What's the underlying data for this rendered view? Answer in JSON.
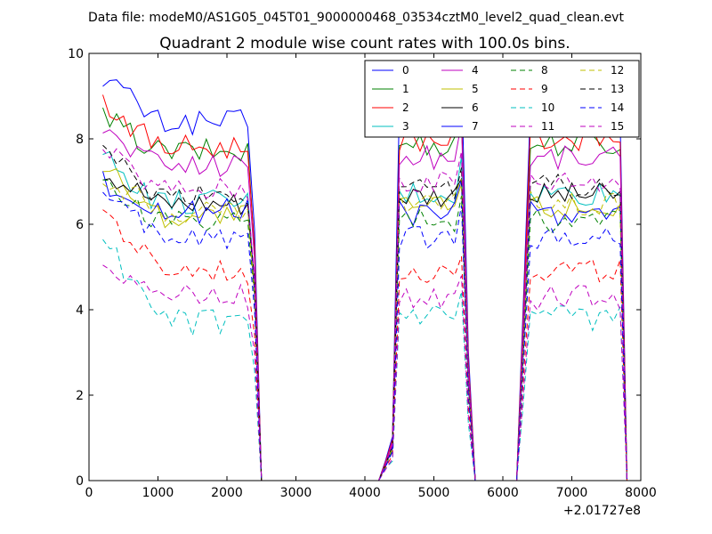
{
  "chart_data": {
    "type": "line",
    "suptitle": "Data file: modeM0/AS1G05_045T01_9000000468_03534cztM0_level2_quad_clean.evt",
    "title": "Quadrant 2 module wise count rates with 100.0s bins.",
    "xlabel": "",
    "ylabel": "",
    "x_offset_label": "+2.01727e8",
    "xlim": [
      0,
      8000
    ],
    "ylim": [
      0,
      10
    ],
    "xticks": [
      0,
      1000,
      2000,
      3000,
      4000,
      5000,
      6000,
      7000,
      8000
    ],
    "xtick_labels": [
      "0",
      "1000",
      "2000",
      "3000",
      "4000",
      "5000",
      "6000",
      "7000",
      "8000"
    ],
    "yticks": [
      0,
      2,
      4,
      6,
      8,
      10
    ],
    "ytick_labels": [
      "0",
      "2",
      "4",
      "6",
      "8",
      "10"
    ],
    "legend_position": "upper-right",
    "legend_columns": 4,
    "x": [
      200,
      300,
      400,
      500,
      600,
      700,
      800,
      900,
      1000,
      1100,
      1200,
      1300,
      1400,
      1500,
      1600,
      1700,
      1800,
      1900,
      2000,
      2100,
      2200,
      2300,
      2400,
      2500,
      2600,
      2700,
      2800,
      2900,
      3000,
      3100,
      3200,
      3300,
      3400,
      3500,
      3600,
      3700,
      3800,
      3900,
      4000,
      4100,
      4200,
      4300,
      4400,
      4500,
      4600,
      4700,
      4800,
      4900,
      5000,
      5100,
      5200,
      5300,
      5400,
      5500,
      5600,
      5700,
      5800,
      5900,
      6000,
      6100,
      6200,
      6300,
      6400,
      6500,
      6600,
      6700,
      6800,
      6900,
      7000,
      7100,
      7200,
      7300,
      7400,
      7500,
      7600,
      7700,
      7800
    ],
    "series": [
      {
        "name": "0",
        "color": "#0000ff",
        "dash": "solid",
        "base": 9.5,
        "decay": 1.1
      },
      {
        "name": "1",
        "color": "#008000",
        "dash": "solid",
        "base": 8.5,
        "decay": 0.8
      },
      {
        "name": "2",
        "color": "#ff0000",
        "dash": "solid",
        "base": 8.9,
        "decay": 1.1
      },
      {
        "name": "3",
        "color": "#00bfbf",
        "dash": "solid",
        "base": 7.6,
        "decay": 1.1
      },
      {
        "name": "4",
        "color": "#bf00bf",
        "dash": "solid",
        "base": 8.2,
        "decay": 0.8
      },
      {
        "name": "5",
        "color": "#bfbf00",
        "dash": "solid",
        "base": 7.4,
        "decay": 1.2
      },
      {
        "name": "6",
        "color": "#000000",
        "dash": "solid",
        "base": 7.3,
        "decay": 0.8
      },
      {
        "name": "7",
        "color": "#0000ff",
        "dash": "solid",
        "base": 7.0,
        "decay": 0.7
      },
      {
        "name": "8",
        "color": "#008000",
        "dash": "dashed",
        "base": 6.9,
        "decay": 0.8
      },
      {
        "name": "9",
        "color": "#ff0000",
        "dash": "dashed",
        "base": 6.3,
        "decay": 1.4
      },
      {
        "name": "10",
        "color": "#00bfbf",
        "dash": "dashed",
        "base": 5.7,
        "decay": 2.0
      },
      {
        "name": "11",
        "color": "#bf00bf",
        "dash": "dashed",
        "base": 5.2,
        "decay": 0.9
      },
      {
        "name": "12",
        "color": "#bfbf00",
        "dash": "dashed",
        "base": 7.2,
        "decay": 0.9
      },
      {
        "name": "13",
        "color": "#000000",
        "dash": "dashed",
        "base": 7.6,
        "decay": 0.9
      },
      {
        "name": "14",
        "color": "#0000ff",
        "dash": "dashed",
        "base": 6.6,
        "decay": 0.9
      },
      {
        "name": "15",
        "color": "#bf00bf",
        "dash": "dashed",
        "base": 7.7,
        "decay": 0.9
      }
    ]
  }
}
